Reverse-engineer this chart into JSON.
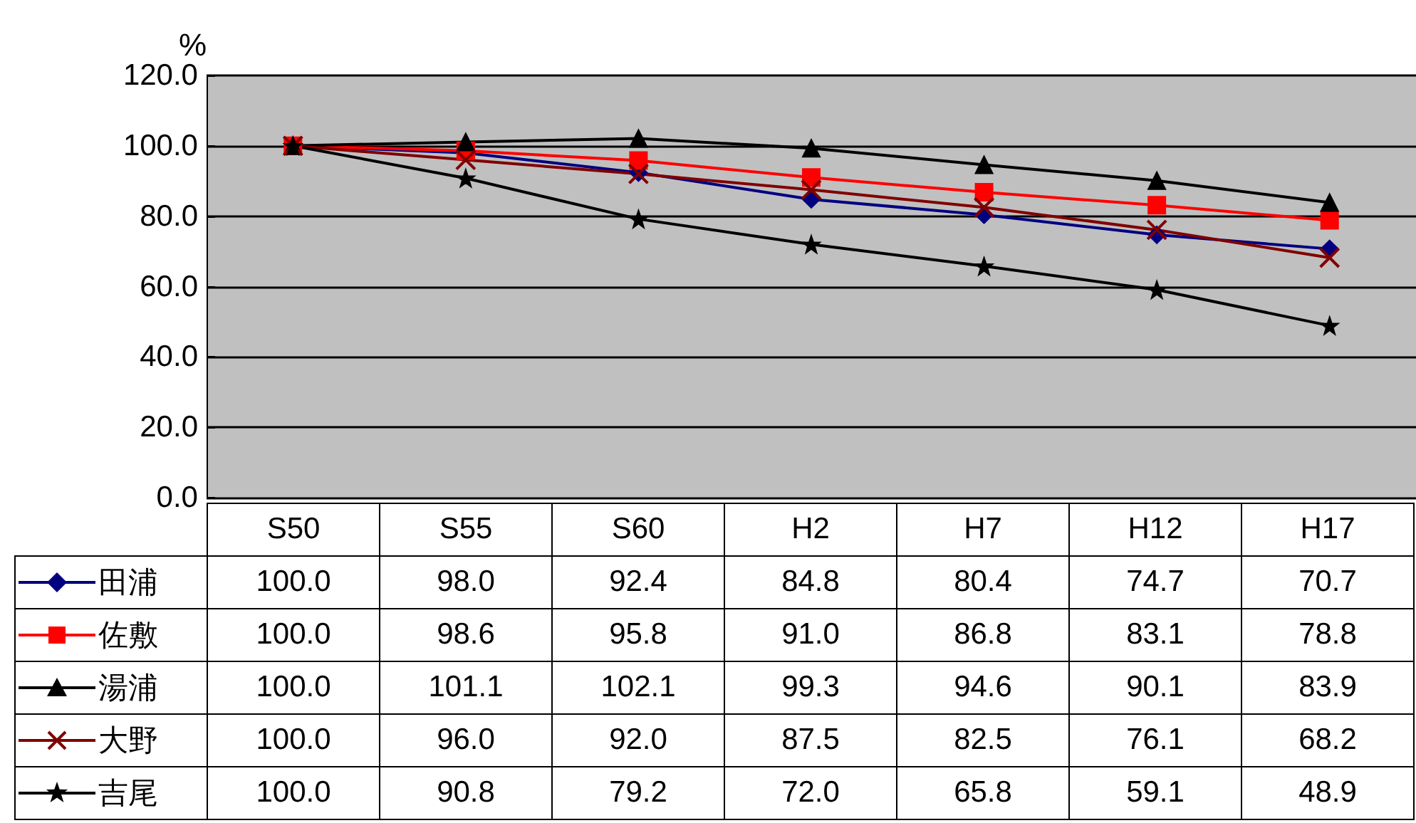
{
  "chart_data": {
    "type": "line",
    "ylabel": "%",
    "categories": [
      "S50",
      "S55",
      "S60",
      "H2",
      "H7",
      "H12",
      "H17"
    ],
    "ylim": [
      0,
      120
    ],
    "yticks": [
      {
        "value": 0,
        "label": "0.0"
      },
      {
        "value": 20,
        "label": "20.0"
      },
      {
        "value": 40,
        "label": "40.0"
      },
      {
        "value": 60,
        "label": "60.0"
      },
      {
        "value": 80,
        "label": "80.0"
      },
      {
        "value": 100,
        "label": "100.0"
      },
      {
        "value": 120,
        "label": "120.0"
      }
    ],
    "grid": "y",
    "legend": "bottom",
    "series": [
      {
        "name": "田浦",
        "color": "#000080",
        "marker": "diamond",
        "values": [
          100.0,
          98.0,
          92.4,
          84.8,
          80.4,
          74.7,
          70.7
        ],
        "value_labels": [
          "100.0",
          "98.0",
          "92.4",
          "84.8",
          "80.4",
          "74.7",
          "70.7"
        ]
      },
      {
        "name": "佐敷",
        "color": "#ff0000",
        "marker": "square",
        "values": [
          100.0,
          98.6,
          95.8,
          91.0,
          86.8,
          83.1,
          78.8
        ],
        "value_labels": [
          "100.0",
          "98.6",
          "95.8",
          "91.0",
          "86.8",
          "83.1",
          "78.8"
        ]
      },
      {
        "name": "湯浦",
        "color": "#000000",
        "marker": "triangle",
        "values": [
          100.0,
          101.1,
          102.1,
          99.3,
          94.6,
          90.1,
          83.9
        ],
        "value_labels": [
          "100.0",
          "101.1",
          "102.1",
          "99.3",
          "94.6",
          "90.1",
          "83.9"
        ]
      },
      {
        "name": "大野",
        "color": "#800000",
        "marker": "cross",
        "values": [
          100.0,
          96.0,
          92.0,
          87.5,
          82.5,
          76.1,
          68.2
        ],
        "value_labels": [
          "100.0",
          "96.0",
          "92.0",
          "87.5",
          "82.5",
          "76.1",
          "68.2"
        ]
      },
      {
        "name": "吉尾",
        "color": "#000000",
        "marker": "star",
        "values": [
          100.0,
          90.8,
          79.2,
          72.0,
          65.8,
          59.1,
          48.9
        ],
        "value_labels": [
          "100.0",
          "90.8",
          "79.2",
          "72.0",
          "65.8",
          "59.1",
          "48.9"
        ]
      }
    ]
  }
}
